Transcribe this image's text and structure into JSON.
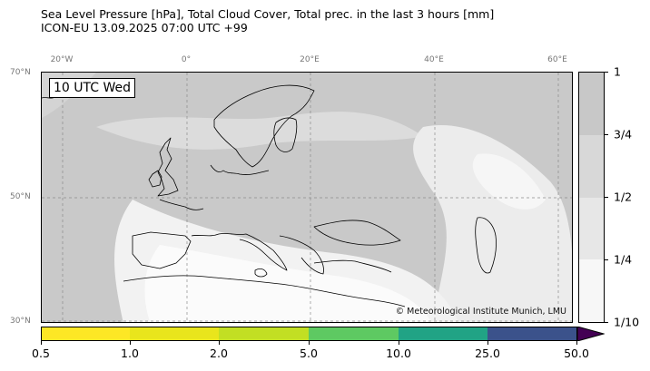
{
  "header": {
    "title_line1": "Sea Level Pressure [hPa], Total Cloud Cover, Total prec. in the last 3 hours [mm]",
    "title_line2": "ICON-EU 13.09.2025 07:00 UTC +99"
  },
  "map": {
    "time_label": "10 UTC Wed",
    "copyright": "© Meteorological Institute Munich, LMU",
    "lon_labels": [
      "20°W",
      "0°",
      "20°E",
      "40°E",
      "60°E"
    ],
    "lat_labels": [
      "70°N",
      "50°N",
      "30°N"
    ]
  },
  "cloud_colorbar": {
    "tick_labels": [
      "1",
      "3/4",
      "1/2",
      "1/4",
      "1/10"
    ],
    "colors": [
      "#c8c8c8",
      "#d8d8d8",
      "#e7e7e7",
      "#f7f7f7"
    ]
  },
  "precip_colorbar": {
    "tick_labels": [
      "0.5",
      "1.0",
      "2.0",
      "5.0",
      "10.0",
      "25.0",
      "50.0"
    ],
    "colors": [
      "#fde725",
      "#e9e51c",
      "#c2df23",
      "#5ec962",
      "#21a385",
      "#3b528b"
    ],
    "extend_color": "#440154"
  }
}
